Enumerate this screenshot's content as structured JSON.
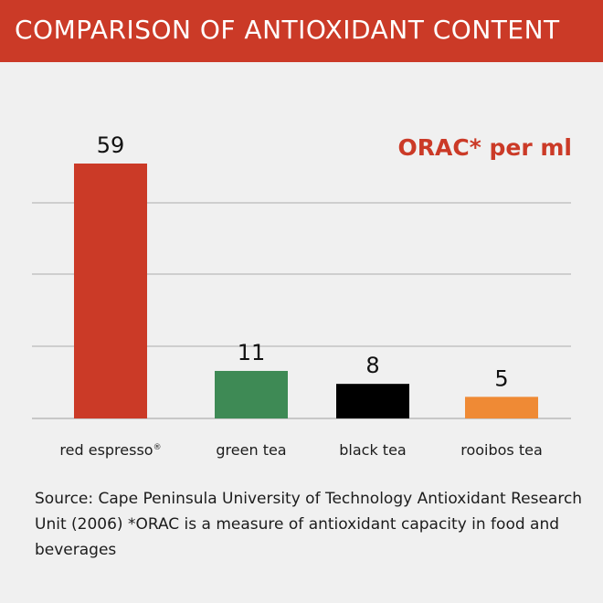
{
  "header": {
    "title": "COMPARISON OF ANTIOXIDANT CONTENT",
    "background": "#cb3a27"
  },
  "chart_data": {
    "type": "bar",
    "unit_label": "ORAC* per ml",
    "categories": [
      "red espresso",
      "green tea",
      "black tea",
      "rooibos tea"
    ],
    "values": [
      59,
      11,
      8,
      5
    ],
    "data_labels": [
      "59",
      "11",
      "8",
      "5"
    ],
    "colors": [
      "#cb3a27",
      "#3e8a55",
      "#000000",
      "#ef8a35"
    ],
    "trademark_on": "red espresso",
    "trademark_symbol": "®",
    "gridlines": true,
    "ylim": [
      0,
      59
    ]
  },
  "footer": {
    "source": "Source: Cape Peninsula University of Technology Antioxidant Research Unit (2006) *ORAC is a measure of antioxidant capacity in food and beverages"
  }
}
